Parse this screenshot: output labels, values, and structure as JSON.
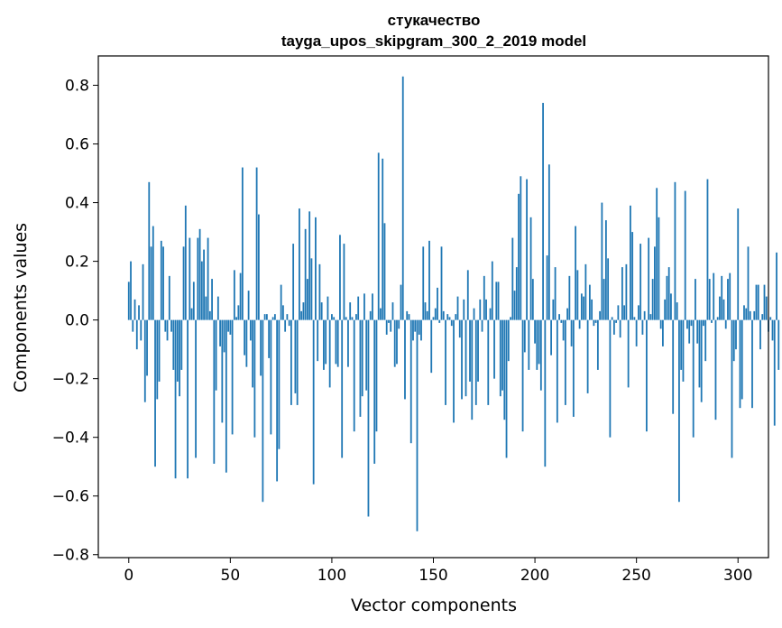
{
  "chart_data": {
    "type": "bar",
    "title_line1": "стукачество",
    "title_line2": "tayga_upos_skipgram_300_2_2019 model",
    "xlabel": "Vector components",
    "ylabel": "Components values",
    "xlim": [
      -15,
      315
    ],
    "ylim": [
      -0.81,
      0.9
    ],
    "xticks": [
      0,
      50,
      100,
      150,
      200,
      250,
      300
    ],
    "yticks": [
      0.8,
      0.6,
      0.4,
      0.2,
      0.0,
      -0.2,
      -0.4,
      -0.6,
      -0.8
    ],
    "ytick_labels": [
      "0.8",
      "0.6",
      "0.4",
      "0.2",
      "0.0",
      "−0.2",
      "−0.4",
      "−0.6",
      "−0.8"
    ],
    "bar_color": "#1f77b4",
    "values": [
      0.13,
      0.2,
      -0.04,
      0.07,
      -0.1,
      0.05,
      -0.07,
      0.19,
      -0.28,
      -0.19,
      0.47,
      0.25,
      0.32,
      -0.5,
      -0.27,
      -0.21,
      0.27,
      0.25,
      -0.04,
      -0.07,
      0.15,
      -0.04,
      -0.17,
      -0.54,
      -0.21,
      -0.26,
      -0.17,
      0.25,
      0.39,
      -0.54,
      0.28,
      0.04,
      0.13,
      -0.47,
      0.28,
      0.31,
      0.2,
      0.24,
      0.08,
      0.28,
      0.03,
      0.14,
      -0.49,
      -0.24,
      0.08,
      -0.09,
      -0.35,
      -0.11,
      -0.52,
      -0.04,
      -0.05,
      -0.39,
      0.17,
      0.01,
      0.05,
      0.16,
      0.52,
      -0.12,
      -0.16,
      0.1,
      -0.07,
      -0.23,
      -0.4,
      0.52,
      0.36,
      -0.19,
      -0.62,
      0.02,
      0.02,
      -0.13,
      -0.39,
      0.01,
      0.02,
      -0.55,
      -0.44,
      0.12,
      0.05,
      -0.04,
      0.02,
      -0.02,
      -0.29,
      0.26,
      -0.25,
      -0.29,
      0.38,
      0.03,
      0.06,
      0.31,
      0.14,
      0.37,
      0.21,
      -0.56,
      0.35,
      -0.14,
      0.19,
      0.06,
      -0.17,
      -0.15,
      0.08,
      -0.23,
      0.02,
      0.01,
      -0.15,
      -0.16,
      0.29,
      -0.47,
      0.26,
      0.01,
      -0.16,
      0.06,
      0.01,
      -0.38,
      0.02,
      0.08,
      -0.33,
      -0.26,
      0.09,
      -0.24,
      -0.67,
      0.03,
      0.09,
      -0.49,
      -0.38,
      0.57,
      0.04,
      0.55,
      0.33,
      -0.05,
      -0.01,
      -0.04,
      0.06,
      -0.16,
      -0.15,
      -0.03,
      0.12,
      0.83,
      -0.27,
      0.03,
      0.02,
      -0.42,
      -0.07,
      -0.04,
      -0.72,
      -0.05,
      -0.07,
      0.25,
      0.06,
      0.03,
      0.27,
      -0.18,
      0.01,
      0.04,
      0.11,
      -0.01,
      0.25,
      0.03,
      -0.29,
      0.02,
      0.01,
      -0.02,
      -0.35,
      0.02,
      0.08,
      -0.06,
      -0.27,
      0.07,
      -0.26,
      0.17,
      -0.21,
      -0.34,
      0.04,
      -0.29,
      -0.21,
      0.07,
      -0.04,
      0.15,
      0.07,
      -0.29,
      0.04,
      0.2,
      -0.2,
      0.13,
      0.13,
      -0.26,
      -0.24,
      -0.34,
      -0.47,
      -0.14,
      0.01,
      0.28,
      0.1,
      0.18,
      0.43,
      0.49,
      -0.38,
      -0.11,
      0.48,
      -0.17,
      0.35,
      0.14,
      -0.08,
      -0.17,
      -0.15,
      -0.24,
      0.74,
      -0.5,
      0.22,
      0.53,
      -0.12,
      0.07,
      0.18,
      -0.35,
      0.02,
      -0.01,
      -0.07,
      -0.29,
      0.04,
      0.15,
      -0.09,
      -0.33,
      0.32,
      0.17,
      -0.03,
      0.09,
      0.08,
      0.19,
      -0.25,
      0.12,
      0.07,
      -0.02,
      -0.01,
      -0.17,
      0.03,
      0.4,
      0.14,
      0.34,
      0.21,
      -0.4,
      0.01,
      -0.05,
      -0.01,
      0.05,
      -0.06,
      0.18,
      0.05,
      0.19,
      -0.23,
      0.39,
      0.3,
      0.01,
      -0.09,
      0.05,
      0.26,
      -0.05,
      0.03,
      -0.38,
      0.28,
      0.02,
      0.14,
      0.25,
      0.45,
      0.35,
      -0.03,
      -0.09,
      0.07,
      0.15,
      0.18,
      0.09,
      -0.32,
      0.47,
      0.06,
      -0.62,
      -0.17,
      -0.21,
      0.44,
      -0.03,
      -0.08,
      -0.02,
      -0.4,
      0.14,
      -0.08,
      -0.23,
      -0.28,
      -0.02,
      -0.14,
      0.48,
      0.14,
      -0.01,
      0.16,
      -0.34,
      0.01,
      0.08,
      0.15,
      0.07,
      -0.03,
      0.14,
      0.16,
      -0.47,
      -0.14,
      -0.1,
      0.38,
      -0.3,
      -0.27,
      0.05,
      0.04,
      0.25,
      0.03,
      -0.3,
      0.03,
      0.12,
      0.12,
      -0.1,
      0.02,
      0.12,
      0.08,
      -0.04,
      0.01,
      -0.07,
      -0.36,
      0.23,
      -0.17
    ]
  }
}
